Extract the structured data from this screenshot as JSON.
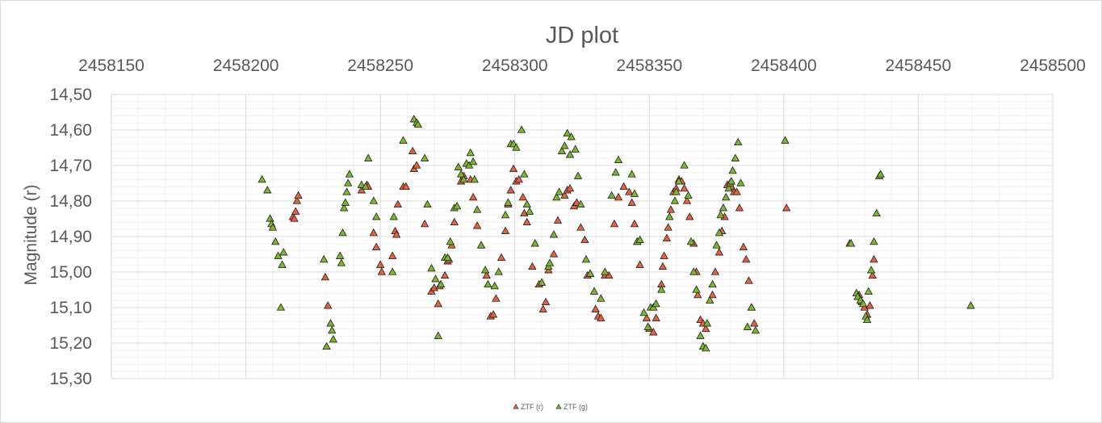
{
  "chart_data": {
    "type": "scatter",
    "title": "JD plot",
    "xlabel": "",
    "ylabel": "Magnitude (r)",
    "xlim": [
      2458150,
      2458500
    ],
    "ylim": [
      14.5,
      15.3
    ],
    "y_inverted": true,
    "x_axis_position": "top",
    "grid": true,
    "legend_position": "bottom",
    "x_ticks": [
      "2458150",
      "2458200",
      "2458250",
      "2458300",
      "2458350",
      "2458400",
      "2458450",
      "2458500"
    ],
    "y_ticks": [
      "14,50",
      "14,60",
      "14,70",
      "14,80",
      "14,90",
      "15,00",
      "15,10",
      "15,20",
      "15,30"
    ],
    "series": [
      {
        "name": "ZTF (r)",
        "color": "#e8603c",
        "points": [
          [
            2458217.5,
            14.845
          ],
          [
            2458218.0,
            14.85
          ],
          [
            2458218.5,
            14.83
          ],
          [
            2458219.0,
            14.8
          ],
          [
            2458219.5,
            14.785
          ],
          [
            2458229.5,
            15.015
          ],
          [
            2458230.5,
            15.095
          ],
          [
            2458243.0,
            14.77
          ],
          [
            2458245.0,
            14.755
          ],
          [
            2458245.5,
            14.76
          ],
          [
            2458247.5,
            14.89
          ],
          [
            2458248.5,
            14.93
          ],
          [
            2458250.0,
            14.98
          ],
          [
            2458250.5,
            15.0
          ],
          [
            2458254.5,
            14.955
          ],
          [
            2458255.5,
            14.885
          ],
          [
            2458256.0,
            14.895
          ],
          [
            2458256.5,
            14.81
          ],
          [
            2458258.5,
            14.76
          ],
          [
            2458259.5,
            14.76
          ],
          [
            2458262.0,
            14.66
          ],
          [
            2458262.5,
            14.71
          ],
          [
            2458263.5,
            14.7
          ],
          [
            2458266.5,
            14.865
          ],
          [
            2458269.0,
            15.055
          ],
          [
            2458270.0,
            15.045
          ],
          [
            2458271.5,
            15.09
          ],
          [
            2458272.0,
            15.04
          ],
          [
            2458274.0,
            15.01
          ],
          [
            2458275.0,
            14.97
          ],
          [
            2458275.5,
            14.965
          ],
          [
            2458276.5,
            14.925
          ],
          [
            2458277.5,
            14.86
          ],
          [
            2458280.0,
            14.745
          ],
          [
            2458281.0,
            14.73
          ],
          [
            2458283.5,
            14.74
          ],
          [
            2458284.5,
            14.79
          ],
          [
            2458286.0,
            14.87
          ],
          [
            2458287.5,
            14.925
          ],
          [
            2458289.5,
            15.01
          ],
          [
            2458291.0,
            15.125
          ],
          [
            2458292.0,
            15.12
          ],
          [
            2458293.0,
            15.075
          ],
          [
            2458295.0,
            14.96
          ],
          [
            2458296.5,
            14.885
          ],
          [
            2458297.5,
            14.81
          ],
          [
            2458298.5,
            14.77
          ],
          [
            2458299.5,
            14.71
          ],
          [
            2458300.5,
            14.745
          ],
          [
            2458301.5,
            14.74
          ],
          [
            2458303.0,
            14.79
          ],
          [
            2458303.5,
            14.835
          ],
          [
            2458304.5,
            14.86
          ],
          [
            2458306.5,
            14.985
          ],
          [
            2458309.0,
            15.035
          ],
          [
            2458310.5,
            15.105
          ],
          [
            2458311.5,
            15.085
          ],
          [
            2458312.5,
            14.995
          ],
          [
            2458314.5,
            14.95
          ],
          [
            2458316.0,
            14.855
          ],
          [
            2458318.5,
            14.785
          ],
          [
            2458319.5,
            14.77
          ],
          [
            2458320.5,
            14.765
          ],
          [
            2458322.0,
            14.815
          ],
          [
            2458323.0,
            14.805
          ],
          [
            2458324.5,
            14.875
          ],
          [
            2458326.0,
            14.91
          ],
          [
            2458327.0,
            15.01
          ],
          [
            2458328.0,
            15.005
          ],
          [
            2458330.0,
            15.105
          ],
          [
            2458331.0,
            15.125
          ],
          [
            2458332.0,
            15.13
          ],
          [
            2458333.5,
            15.01
          ],
          [
            2458335.0,
            15.01
          ],
          [
            2458337.0,
            14.865
          ],
          [
            2458338.5,
            14.79
          ],
          [
            2458340.5,
            14.76
          ],
          [
            2458342.5,
            14.775
          ],
          [
            2458343.5,
            14.805
          ],
          [
            2458344.5,
            14.865
          ],
          [
            2458345.5,
            14.915
          ],
          [
            2458346.5,
            14.98
          ],
          [
            2458349.0,
            15.13
          ],
          [
            2458350.0,
            15.16
          ],
          [
            2458351.5,
            15.17
          ],
          [
            2458352.5,
            15.13
          ],
          [
            2458354.5,
            15.035
          ],
          [
            2458355.0,
            14.985
          ],
          [
            2458355.5,
            14.955
          ],
          [
            2458356.5,
            14.905
          ],
          [
            2458357.0,
            14.875
          ],
          [
            2458358.0,
            14.825
          ],
          [
            2458359.0,
            14.775
          ],
          [
            2458360.0,
            14.765
          ],
          [
            2458361.0,
            14.74
          ],
          [
            2458362.0,
            14.745
          ],
          [
            2458363.0,
            14.765
          ],
          [
            2458364.0,
            14.8
          ],
          [
            2458365.0,
            14.845
          ],
          [
            2458366.5,
            14.92
          ],
          [
            2458367.5,
            15.0
          ],
          [
            2458368.0,
            15.065
          ],
          [
            2458369.0,
            15.135
          ],
          [
            2458370.0,
            15.145
          ],
          [
            2458371.0,
            15.16
          ],
          [
            2458373.5,
            15.065
          ],
          [
            2458374.5,
            15.0
          ],
          [
            2458376.0,
            14.945
          ],
          [
            2458377.0,
            14.885
          ],
          [
            2458378.0,
            14.845
          ],
          [
            2458379.0,
            14.755
          ],
          [
            2458380.5,
            14.76
          ],
          [
            2458381.5,
            14.775
          ],
          [
            2458382.5,
            14.775
          ],
          [
            2458383.5,
            14.82
          ],
          [
            2458385.0,
            14.93
          ],
          [
            2458386.0,
            14.965
          ],
          [
            2458387.0,
            15.025
          ],
          [
            2458388.0,
            15.1
          ],
          [
            2458389.0,
            15.145
          ],
          [
            2458401.0,
            14.82
          ],
          [
            2458424.5,
            14.92
          ],
          [
            2458428.0,
            15.065
          ],
          [
            2458429.0,
            15.085
          ],
          [
            2458430.0,
            15.1
          ],
          [
            2458431.0,
            15.12
          ],
          [
            2458432.0,
            15.095
          ],
          [
            2458433.0,
            15.01
          ],
          [
            2458433.5,
            14.965
          ]
        ]
      },
      {
        "name": "ZTF (g)",
        "color": "#78b82a",
        "points": [
          [
            2458206.0,
            14.74
          ],
          [
            2458208.0,
            14.77
          ],
          [
            2458209.0,
            14.85
          ],
          [
            2458209.5,
            14.865
          ],
          [
            2458210.0,
            14.875
          ],
          [
            2458211.0,
            14.915
          ],
          [
            2458212.0,
            14.955
          ],
          [
            2458213.5,
            14.98
          ],
          [
            2458214.0,
            14.945
          ],
          [
            2458213.0,
            15.1
          ],
          [
            2458229.0,
            14.965
          ],
          [
            2458230.0,
            15.21
          ],
          [
            2458231.5,
            15.145
          ],
          [
            2458232.0,
            15.165
          ],
          [
            2458232.5,
            15.19
          ],
          [
            2458235.0,
            14.955
          ],
          [
            2458235.5,
            14.975
          ],
          [
            2458236.0,
            14.89
          ],
          [
            2458236.5,
            14.82
          ],
          [
            2458237.0,
            14.805
          ],
          [
            2458237.5,
            14.775
          ],
          [
            2458238.0,
            14.75
          ],
          [
            2458238.5,
            14.725
          ],
          [
            2458243.0,
            14.755
          ],
          [
            2458244.5,
            14.76
          ],
          [
            2458245.5,
            14.68
          ],
          [
            2458247.5,
            14.8
          ],
          [
            2458248.5,
            14.845
          ],
          [
            2458254.5,
            15.0
          ],
          [
            2458255.0,
            14.845
          ],
          [
            2458258.5,
            14.63
          ],
          [
            2458262.5,
            14.57
          ],
          [
            2458263.5,
            14.58
          ],
          [
            2458264.0,
            14.585
          ],
          [
            2458266.5,
            14.68
          ],
          [
            2458267.5,
            14.81
          ],
          [
            2458269.0,
            14.99
          ],
          [
            2458270.5,
            15.02
          ],
          [
            2458271.5,
            15.18
          ],
          [
            2458272.5,
            15.035
          ],
          [
            2458274.0,
            14.96
          ],
          [
            2458275.0,
            14.96
          ],
          [
            2458276.0,
            14.915
          ],
          [
            2458277.5,
            14.82
          ],
          [
            2458278.5,
            14.815
          ],
          [
            2458279.0,
            14.705
          ],
          [
            2458280.0,
            14.725
          ],
          [
            2458281.0,
            14.74
          ],
          [
            2458282.0,
            14.695
          ],
          [
            2458283.0,
            14.7
          ],
          [
            2458283.5,
            14.665
          ],
          [
            2458284.5,
            14.69
          ],
          [
            2458285.0,
            14.74
          ],
          [
            2458286.0,
            14.825
          ],
          [
            2458287.5,
            14.925
          ],
          [
            2458289.0,
            14.995
          ],
          [
            2458290.0,
            15.035
          ],
          [
            2458292.5,
            15.04
          ],
          [
            2458294.0,
            15.0
          ],
          [
            2458296.5,
            14.84
          ],
          [
            2458297.5,
            14.805
          ],
          [
            2458298.5,
            14.64
          ],
          [
            2458299.5,
            14.64
          ],
          [
            2458300.5,
            14.65
          ],
          [
            2458302.5,
            14.6
          ],
          [
            2458303.5,
            14.725
          ],
          [
            2458304.5,
            14.81
          ],
          [
            2458305.5,
            14.83
          ],
          [
            2458307.5,
            14.92
          ],
          [
            2458310.0,
            15.03
          ],
          [
            2458312.5,
            14.985
          ],
          [
            2458313.0,
            14.975
          ],
          [
            2458314.5,
            14.895
          ],
          [
            2458315.5,
            14.79
          ],
          [
            2458316.5,
            14.775
          ],
          [
            2458317.5,
            14.66
          ],
          [
            2458318.5,
            14.645
          ],
          [
            2458319.5,
            14.61
          ],
          [
            2458320.5,
            14.67
          ],
          [
            2458321.0,
            14.62
          ],
          [
            2458322.5,
            14.655
          ],
          [
            2458323.5,
            14.73
          ],
          [
            2458324.5,
            14.81
          ],
          [
            2458326.5,
            14.965
          ],
          [
            2458328.0,
            15.005
          ],
          [
            2458329.5,
            15.055
          ],
          [
            2458332.0,
            15.075
          ],
          [
            2458333.5,
            15.0
          ],
          [
            2458336.0,
            14.785
          ],
          [
            2458337.5,
            14.72
          ],
          [
            2458338.5,
            14.685
          ],
          [
            2458343.5,
            14.725
          ],
          [
            2458344.5,
            14.78
          ],
          [
            2458345.5,
            14.915
          ],
          [
            2458346.5,
            14.91
          ],
          [
            2458348.0,
            15.115
          ],
          [
            2458349.5,
            15.155
          ],
          [
            2458350.5,
            15.1
          ],
          [
            2458351.5,
            15.1
          ],
          [
            2458352.5,
            15.09
          ],
          [
            2458354.5,
            15.05
          ],
          [
            2458357.5,
            14.845
          ],
          [
            2458359.5,
            14.8
          ],
          [
            2458360.0,
            14.775
          ],
          [
            2458361.0,
            14.745
          ],
          [
            2458363.0,
            14.7
          ],
          [
            2458364.5,
            14.785
          ],
          [
            2458365.5,
            14.915
          ],
          [
            2458366.5,
            15.0
          ],
          [
            2458367.5,
            15.05
          ],
          [
            2458369.0,
            15.18
          ],
          [
            2458370.0,
            15.21
          ],
          [
            2458371.0,
            15.215
          ],
          [
            2458371.5,
            15.145
          ],
          [
            2458372.5,
            15.08
          ],
          [
            2458373.5,
            15.035
          ],
          [
            2458375.0,
            14.925
          ],
          [
            2458376.0,
            14.89
          ],
          [
            2458376.5,
            14.84
          ],
          [
            2458377.5,
            14.82
          ],
          [
            2458378.5,
            14.79
          ],
          [
            2458379.5,
            14.765
          ],
          [
            2458380.0,
            14.75
          ],
          [
            2458380.5,
            14.745
          ],
          [
            2458381.0,
            14.715
          ],
          [
            2458382.0,
            14.68
          ],
          [
            2458383.0,
            14.635
          ],
          [
            2458384.0,
            14.75
          ],
          [
            2458386.5,
            15.155
          ],
          [
            2458388.0,
            15.1
          ],
          [
            2458389.5,
            15.165
          ],
          [
            2458400.5,
            14.63
          ],
          [
            2458425.0,
            14.92
          ],
          [
            2458427.0,
            15.06
          ],
          [
            2458427.5,
            15.07
          ],
          [
            2458428.5,
            15.08
          ],
          [
            2458429.5,
            15.09
          ],
          [
            2458430.5,
            15.125
          ],
          [
            2458431.0,
            15.135
          ],
          [
            2458431.5,
            15.055
          ],
          [
            2458432.5,
            14.995
          ],
          [
            2458433.5,
            14.915
          ],
          [
            2458434.5,
            14.835
          ],
          [
            2458435.5,
            14.73
          ],
          [
            2458436.0,
            14.725
          ],
          [
            2458469.5,
            15.095
          ]
        ]
      }
    ]
  }
}
